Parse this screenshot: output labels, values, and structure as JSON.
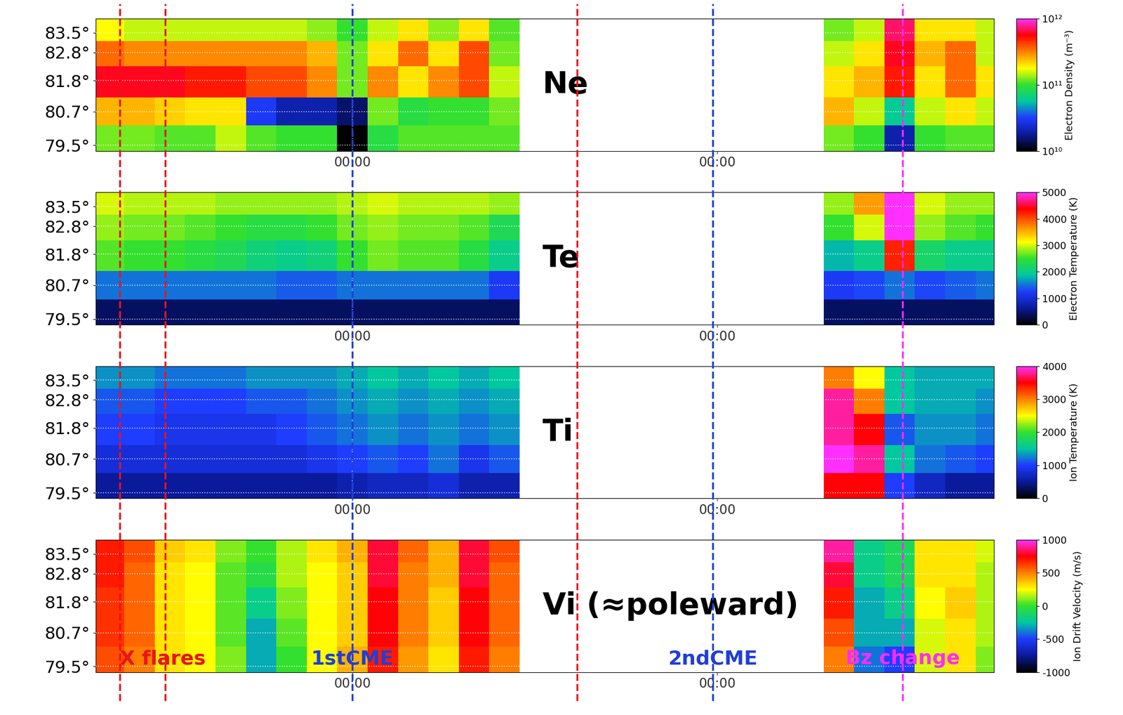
{
  "chart_data": [
    {
      "type": "heatmap",
      "label": "Ne",
      "x_edges": [
        -17,
        -15,
        -13,
        -11,
        -9,
        -7,
        -5,
        -3,
        -1,
        1,
        3,
        5,
        7,
        9,
        11,
        13,
        15,
        17,
        19,
        21,
        23,
        25,
        27,
        29,
        31,
        33,
        35,
        37,
        39,
        41,
        43
      ],
      "y_edges": [
        79.3,
        80.2,
        81.2,
        82.3,
        83.2,
        84.0
      ],
      "xlim": [
        -16.9,
        42.2
      ],
      "xticks": [
        {
          "value": 0,
          "label": "00:00"
        },
        {
          "value": 24,
          "label": "00:00"
        }
      ],
      "ylim": [
        79.3,
        84.0
      ],
      "yticks": [
        {
          "value": 79.5,
          "label": "79.5°"
        },
        {
          "value": 80.7,
          "label": "80.7°"
        },
        {
          "value": 81.8,
          "label": "81.8°"
        },
        {
          "value": 82.8,
          "label": "82.8°"
        },
        {
          "value": 83.5,
          "label": "83.5°"
        }
      ],
      "grid": true,
      "cells": [
        [
          120000000000.0,
          120000000000.0,
          110000000000.0,
          110000000000.0,
          150000000000.0,
          110000000000.0,
          100000000000.0,
          100000000000.0,
          10000000000.0,
          90000000000.0,
          110000000000.0,
          110000000000.0,
          110000000000.0,
          110000000000.0,
          null,
          null,
          null,
          null,
          null,
          null,
          null,
          null,
          null,
          null,
          120000000000.0,
          100000000000.0,
          20000000000.0,
          100000000000.0,
          110000000000.0,
          110000000000.0
        ],
        [
          250000000000.0,
          250000000000.0,
          220000000000.0,
          200000000000.0,
          200000000000.0,
          30000000000.0,
          20000000000.0,
          20000000000.0,
          15000000000.0,
          120000000000.0,
          90000000000.0,
          100000000000.0,
          100000000000.0,
          120000000000.0,
          null,
          null,
          null,
          null,
          null,
          null,
          null,
          null,
          null,
          null,
          250000000000.0,
          150000000000.0,
          60000000000.0,
          150000000000.0,
          200000000000.0,
          150000000000.0
        ],
        [
          600000000000.0,
          600000000000.0,
          600000000000.0,
          500000000000.0,
          500000000000.0,
          400000000000.0,
          400000000000.0,
          300000000000.0,
          120000000000.0,
          300000000000.0,
          200000000000.0,
          300000000000.0,
          400000000000.0,
          150000000000.0,
          null,
          null,
          null,
          null,
          null,
          null,
          null,
          null,
          null,
          null,
          200000000000.0,
          250000000000.0,
          500000000000.0,
          200000000000.0,
          350000000000.0,
          200000000000.0
        ],
        [
          350000000000.0,
          300000000000.0,
          300000000000.0,
          300000000000.0,
          300000000000.0,
          300000000000.0,
          300000000000.0,
          250000000000.0,
          120000000000.0,
          200000000000.0,
          350000000000.0,
          200000000000.0,
          400000000000.0,
          120000000000.0,
          null,
          null,
          null,
          null,
          null,
          null,
          null,
          null,
          null,
          null,
          150000000000.0,
          200000000000.0,
          600000000000.0,
          250000000000.0,
          350000000000.0,
          150000000000.0
        ],
        [
          180000000000.0,
          150000000000.0,
          150000000000.0,
          150000000000.0,
          150000000000.0,
          150000000000.0,
          150000000000.0,
          130000000000.0,
          100000000000.0,
          150000000000.0,
          200000000000.0,
          130000000000.0,
          200000000000.0,
          110000000000.0,
          null,
          null,
          null,
          null,
          null,
          null,
          null,
          null,
          null,
          null,
          120000000000.0,
          150000000000.0,
          700000000000.0,
          200000000000.0,
          200000000000.0,
          150000000000.0
        ]
      ],
      "colorbar": {
        "label": "Electron Density (m⁻³)",
        "log": true,
        "lim": [
          10000000000.0,
          1000000000000.0
        ],
        "ticks": [
          {
            "value": 10000000000.0,
            "label": "10¹⁰"
          },
          {
            "value": 100000000000.0,
            "label": "10¹¹"
          },
          {
            "value": 1000000000000.0,
            "label": "10¹²"
          }
        ]
      }
    },
    {
      "type": "heatmap",
      "label": "Te",
      "x_edges": [
        -17,
        -15,
        -13,
        -11,
        -9,
        -7,
        -5,
        -3,
        -1,
        1,
        3,
        5,
        7,
        9,
        11,
        13,
        15,
        17,
        19,
        21,
        23,
        25,
        27,
        29,
        31,
        33,
        35,
        37,
        39,
        41,
        43
      ],
      "y_edges": [
        79.3,
        80.2,
        81.2,
        82.3,
        83.2,
        84.0
      ],
      "xlim": [
        -16.9,
        42.2
      ],
      "xticks": [
        {
          "value": 0,
          "label": "00:00"
        },
        {
          "value": 24,
          "label": "00:00"
        }
      ],
      "ylim": [
        79.3,
        84.0
      ],
      "yticks": [
        {
          "value": 79.5,
          "label": "79.5°"
        },
        {
          "value": 80.7,
          "label": "80.7°"
        },
        {
          "value": 81.8,
          "label": "81.8°"
        },
        {
          "value": 82.8,
          "label": "82.8°"
        },
        {
          "value": 83.5,
          "label": "83.5°"
        }
      ],
      "grid": true,
      "cells": [
        [
          400,
          400,
          400,
          400,
          400,
          400,
          400,
          400,
          400,
          400,
          400,
          400,
          400,
          400,
          null,
          null,
          null,
          null,
          null,
          null,
          null,
          null,
          null,
          null,
          400,
          400,
          400,
          400,
          400,
          400
        ],
        [
          1500,
          1500,
          1500,
          1500,
          1500,
          1500,
          1400,
          1400,
          1500,
          1500,
          1500,
          1500,
          1500,
          1200,
          null,
          null,
          null,
          null,
          null,
          null,
          null,
          null,
          null,
          null,
          1200,
          1300,
          1500,
          1300,
          1400,
          1500
        ],
        [
          2600,
          2500,
          2500,
          2400,
          2300,
          2100,
          2000,
          2100,
          2500,
          2700,
          2600,
          2600,
          2400,
          2000,
          null,
          null,
          null,
          null,
          null,
          null,
          null,
          null,
          null,
          null,
          1800,
          2000,
          4200,
          2200,
          2000,
          2000
        ],
        [
          2800,
          2700,
          2700,
          2600,
          2500,
          2400,
          2400,
          2500,
          2700,
          2800,
          2700,
          2700,
          2600,
          2300,
          null,
          null,
          null,
          null,
          null,
          null,
          null,
          null,
          null,
          null,
          2500,
          3000,
          5000,
          2800,
          2600,
          2500
        ],
        [
          3000,
          2900,
          2900,
          2900,
          2800,
          2800,
          2800,
          2800,
          2900,
          3000,
          2900,
          2900,
          2900,
          2800,
          null,
          null,
          null,
          null,
          null,
          null,
          null,
          null,
          null,
          null,
          2800,
          3600,
          5000,
          3000,
          2800,
          2800
        ]
      ],
      "colorbar": {
        "label": "Electron Temperature (K)",
        "log": false,
        "lim": [
          0,
          5000
        ],
        "ticks": [
          0,
          1000,
          2000,
          3000,
          4000,
          5000
        ]
      }
    },
    {
      "type": "heatmap",
      "label": "Ti",
      "x_edges": [
        -17,
        -15,
        -13,
        -11,
        -9,
        -7,
        -5,
        -3,
        -1,
        1,
        3,
        5,
        7,
        9,
        11,
        13,
        15,
        17,
        19,
        21,
        23,
        25,
        27,
        29,
        31,
        33,
        35,
        37,
        39,
        41,
        43
      ],
      "y_edges": [
        79.3,
        80.2,
        81.2,
        82.3,
        83.2,
        84.0
      ],
      "xlim": [
        -16.9,
        42.2
      ],
      "xticks": [
        {
          "value": 0,
          "label": "00:00"
        },
        {
          "value": 24,
          "label": "00:00"
        }
      ],
      "ylim": [
        79.3,
        84.0
      ],
      "yticks": [
        {
          "value": 79.5,
          "label": "79.5°"
        },
        {
          "value": 80.7,
          "label": "80.7°"
        },
        {
          "value": 81.8,
          "label": "81.8°"
        },
        {
          "value": 82.8,
          "label": "82.8°"
        },
        {
          "value": 83.5,
          "label": "83.5°"
        }
      ],
      "grid": true,
      "cells": [
        [
          500,
          500,
          500,
          500,
          500,
          500,
          500,
          500,
          600,
          700,
          700,
          800,
          600,
          600,
          null,
          null,
          null,
          null,
          null,
          null,
          null,
          null,
          null,
          null,
          3500,
          3500,
          1000,
          700,
          500,
          500
        ],
        [
          800,
          800,
          800,
          800,
          800,
          800,
          800,
          900,
          1000,
          1100,
          1000,
          1200,
          900,
          1100,
          null,
          null,
          null,
          null,
          null,
          null,
          null,
          null,
          null,
          null,
          4000,
          3800,
          1500,
          1200,
          1100,
          1000
        ],
        [
          1000,
          1000,
          900,
          900,
          900,
          900,
          1000,
          1100,
          1200,
          1300,
          1200,
          1300,
          1200,
          1300,
          null,
          null,
          null,
          null,
          null,
          null,
          null,
          null,
          null,
          null,
          3800,
          3500,
          1100,
          1300,
          1300,
          1200
        ],
        [
          1100,
          1100,
          1000,
          1000,
          1000,
          1100,
          1100,
          1200,
          1300,
          1400,
          1300,
          1400,
          1300,
          1400,
          null,
          null,
          null,
          null,
          null,
          null,
          null,
          null,
          null,
          null,
          3800,
          3000,
          1500,
          1400,
          1400,
          1300
        ],
        [
          1300,
          1300,
          1200,
          1200,
          1200,
          1300,
          1300,
          1300,
          1400,
          1500,
          1400,
          1500,
          1400,
          1500,
          null,
          null,
          null,
          null,
          null,
          null,
          null,
          null,
          null,
          null,
          3000,
          2500,
          1500,
          1400,
          1400,
          1400
        ]
      ],
      "colorbar": {
        "label": "Ion Temperature (K)",
        "log": false,
        "lim": [
          0,
          4000
        ],
        "ticks": [
          0,
          1000,
          2000,
          3000,
          4000
        ]
      }
    },
    {
      "type": "heatmap",
      "label": "Vi (≈poleward)",
      "x_edges": [
        -17,
        -15,
        -13,
        -11,
        -9,
        -7,
        -5,
        -3,
        -1,
        1,
        3,
        5,
        7,
        9,
        11,
        13,
        15,
        17,
        19,
        21,
        23,
        25,
        27,
        29,
        31,
        33,
        35,
        37,
        39,
        41,
        43
      ],
      "y_edges": [
        79.3,
        80.2,
        81.2,
        82.3,
        83.2,
        84.0
      ],
      "xlim": [
        -16.9,
        42.2
      ],
      "xticks": [
        {
          "value": 0,
          "label": "00:00"
        },
        {
          "value": 24,
          "label": "00:00"
        }
      ],
      "ylim": [
        79.3,
        84.0
      ],
      "yticks": [
        {
          "value": 79.5,
          "label": "79.5°"
        },
        {
          "value": 80.7,
          "label": "80.7°"
        },
        {
          "value": 81.8,
          "label": "81.8°"
        },
        {
          "value": 82.8,
          "label": "82.8°"
        },
        {
          "value": 83.5,
          "label": "83.5°"
        }
      ],
      "grid": true,
      "cells": [
        [
          600,
          500,
          300,
          250,
          100,
          -300,
          0,
          250,
          400,
          700,
          450,
          300,
          700,
          500,
          null,
          null,
          null,
          null,
          null,
          null,
          null,
          null,
          null,
          null,
          500,
          -400,
          -500,
          200,
          300,
          100
        ],
        [
          650,
          550,
          300,
          250,
          50,
          -300,
          50,
          250,
          350,
          750,
          500,
          350,
          750,
          550,
          null,
          null,
          null,
          null,
          null,
          null,
          null,
          null,
          null,
          null,
          600,
          -300,
          -300,
          200,
          300,
          150
        ],
        [
          650,
          550,
          300,
          250,
          50,
          -200,
          100,
          250,
          350,
          750,
          500,
          350,
          750,
          550,
          null,
          null,
          null,
          null,
          null,
          null,
          null,
          null,
          null,
          null,
          700,
          -300,
          -200,
          250,
          350,
          150
        ],
        [
          700,
          550,
          300,
          250,
          50,
          -50,
          150,
          250,
          350,
          800,
          500,
          400,
          800,
          550,
          null,
          null,
          null,
          null,
          null,
          null,
          null,
          null,
          null,
          null,
          800,
          -200,
          -100,
          300,
          300,
          150
        ],
        [
          700,
          600,
          350,
          300,
          100,
          0,
          150,
          300,
          400,
          800,
          550,
          400,
          800,
          600,
          null,
          null,
          null,
          null,
          null,
          null,
          null,
          null,
          null,
          null,
          900,
          -200,
          -100,
          300,
          300,
          200
        ]
      ],
      "colorbar": {
        "label": "Ion Drift Velocity (m/s)",
        "log": false,
        "lim": [
          -1000,
          1000
        ],
        "ticks": [
          -1000,
          -500,
          0,
          500,
          1000
        ]
      }
    }
  ],
  "events": [
    {
      "text": "X flares",
      "color": "#e8141b",
      "x": [
        -15.3,
        -12.3,
        14.8
      ]
    },
    {
      "text": "1stCME",
      "color": "#1f3fd8",
      "x": [
        0
      ]
    },
    {
      "text": "2ndCME",
      "color": "#1f3fd8",
      "x": [
        23.7
      ]
    },
    {
      "text": "Bz change",
      "color": "#ff2bff",
      "x": [
        36.2
      ]
    }
  ]
}
